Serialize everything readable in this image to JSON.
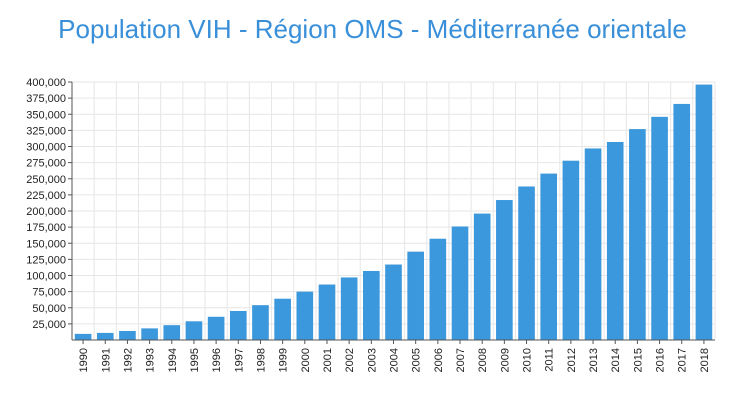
{
  "title": "Population VIH - Région OMS - Méditerranée orientale",
  "colors": {
    "bar": "#3b98dc",
    "title": "#3a8fd9",
    "grid": "#e6e6e6",
    "axis": "#555555"
  },
  "chart_data": {
    "type": "bar",
    "title": "Population VIH - Région OMS - Méditerranée orientale",
    "xlabel": "",
    "ylabel": "",
    "ylim": [
      0,
      400000
    ],
    "y_ticks": [
      25000,
      50000,
      75000,
      100000,
      125000,
      150000,
      175000,
      200000,
      225000,
      250000,
      275000,
      300000,
      325000,
      350000,
      375000,
      400000
    ],
    "y_tick_labels": [
      "25,000",
      "50,000",
      "75,000",
      "100,000",
      "125,000",
      "150,000",
      "175,000",
      "200,000",
      "225,000",
      "250,000",
      "275,000",
      "300,000",
      "325,000",
      "350,000",
      "375,000",
      "400,000"
    ],
    "grid": true,
    "legend": "none",
    "categories": [
      "1990",
      "1991",
      "1992",
      "1993",
      "1994",
      "1995",
      "1996",
      "1997",
      "1998",
      "1999",
      "2000",
      "2001",
      "2002",
      "2003",
      "2004",
      "2005",
      "2006",
      "2007",
      "2008",
      "2009",
      "2010",
      "2011",
      "2012",
      "2013",
      "2014",
      "2015",
      "2016",
      "2017",
      "2018"
    ],
    "values": [
      9500,
      11000,
      14000,
      18000,
      23000,
      29000,
      36000,
      45000,
      54000,
      64000,
      75000,
      86000,
      97000,
      107000,
      117000,
      137000,
      157000,
      176000,
      196000,
      217000,
      238000,
      258000,
      278000,
      297000,
      307000,
      327000,
      346000,
      366000,
      396000
    ]
  }
}
